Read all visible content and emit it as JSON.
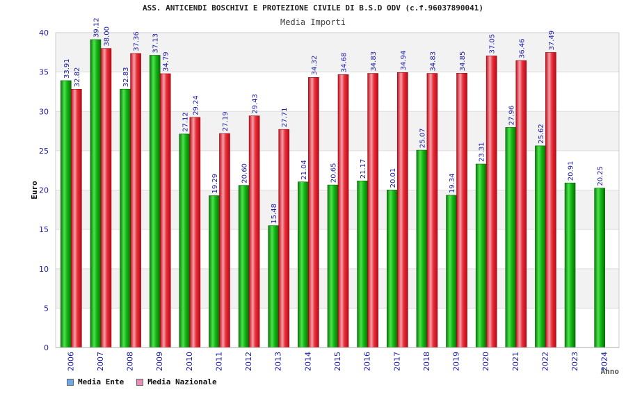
{
  "chart_data": {
    "type": "bar",
    "title": "ASS. ANTICENDI BOSCHIVI E PROTEZIONE CIVILE DI B.S.D ODV (c.f.96037890041)",
    "subtitle": "Media Importi",
    "ylabel": "Euro",
    "xlabel": "Anno",
    "ylim": [
      0,
      40
    ],
    "yticks": [
      0,
      5,
      10,
      15,
      20,
      25,
      30,
      35,
      40
    ],
    "categories": [
      "2006",
      "2007",
      "2008",
      "2009",
      "2010",
      "2011",
      "2012",
      "2013",
      "2014",
      "2015",
      "2016",
      "2017",
      "2018",
      "2019",
      "2020",
      "2021",
      "2022",
      "2023",
      "2024"
    ],
    "series": [
      {
        "name": "Media Ente",
        "values": [
          33.91,
          39.12,
          32.83,
          37.13,
          27.12,
          19.29,
          20.6,
          15.48,
          21.04,
          20.65,
          21.17,
          20.01,
          25.07,
          19.34,
          23.31,
          27.96,
          25.62,
          20.91,
          20.25
        ],
        "labels": [
          "33.91",
          "39.12",
          "32.83",
          "37.13",
          "27.12",
          "19.29",
          "20.60",
          "15.48",
          "21.04",
          "20.65",
          "21.17",
          "20.01",
          "25.07",
          "19.34",
          "23.31",
          "27.96",
          "25.62",
          "20.91",
          "20.25"
        ]
      },
      {
        "name": "Media Nazionale",
        "values": [
          32.82,
          38.0,
          37.36,
          34.79,
          29.24,
          27.19,
          29.43,
          27.71,
          34.32,
          34.68,
          34.83,
          34.94,
          34.83,
          34.85,
          37.05,
          36.46,
          37.49,
          null,
          null
        ],
        "labels": [
          "32.82",
          "38.00",
          "37.36",
          "34.79",
          "29.24",
          "27.19",
          "29.43",
          "27.71",
          "34.32",
          "34.68",
          "34.83",
          "34.94",
          "34.83",
          "34.85",
          "37.05",
          "36.46",
          "37.49",
          null,
          null
        ]
      }
    ],
    "legend": [
      {
        "label": "Media Ente",
        "color": "#6aa8e8"
      },
      {
        "label": "Media Nazionale",
        "color": "#e58fb6"
      }
    ],
    "colors": {
      "ente": "#12a812",
      "nazionale": "#e0202c",
      "tick": "#1a1aa6"
    }
  }
}
